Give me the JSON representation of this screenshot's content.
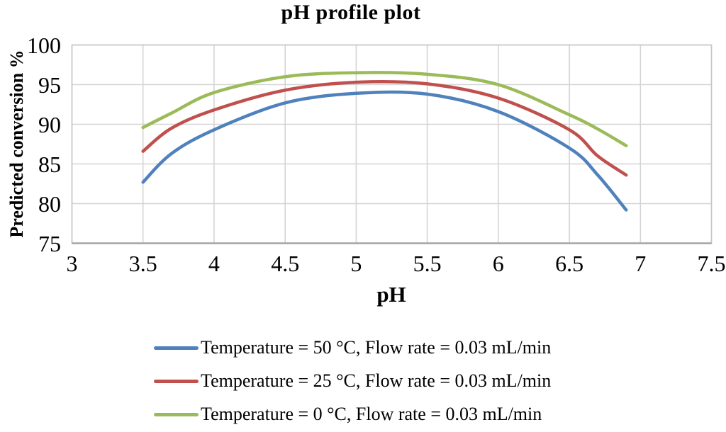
{
  "chart_data": {
    "type": "line",
    "title": "pH profile plot",
    "xlabel": "pH",
    "ylabel": "Predicted conversion %",
    "xlim": [
      3,
      7.5
    ],
    "ylim": [
      75,
      100
    ],
    "x_ticks": [
      3,
      3.5,
      4,
      4.5,
      5,
      5.5,
      6,
      6.5,
      7,
      7.5
    ],
    "y_ticks": [
      75,
      80,
      85,
      90,
      95,
      100
    ],
    "grid": true,
    "legend_position": "bottom",
    "style": {
      "grid_color": "#d4d4d4",
      "plot_border_color": "#c6c6c6",
      "x_axis_color": "#a3a3a3",
      "line_width": 4.5
    },
    "series": [
      {
        "name": "Temperature = 50 °C, Flow rate = 0.03 mL/min",
        "color": "#4F81BD",
        "points": [
          [
            3.5,
            82.7
          ],
          [
            3.7,
            86.3
          ],
          [
            4.0,
            89.3
          ],
          [
            4.5,
            92.7
          ],
          [
            5.0,
            93.9
          ],
          [
            5.5,
            93.8
          ],
          [
            6.0,
            91.6
          ],
          [
            6.5,
            87.0
          ],
          [
            6.7,
            83.6
          ],
          [
            6.9,
            79.2
          ]
        ]
      },
      {
        "name": "Temperature = 25 °C, Flow rate = 0.03 mL/min",
        "color": "#C0504D",
        "points": [
          [
            3.5,
            86.6
          ],
          [
            3.7,
            89.5
          ],
          [
            4.0,
            91.8
          ],
          [
            4.5,
            94.3
          ],
          [
            5.0,
            95.3
          ],
          [
            5.5,
            95.1
          ],
          [
            6.0,
            93.3
          ],
          [
            6.5,
            89.3
          ],
          [
            6.7,
            86.0
          ],
          [
            6.9,
            83.6
          ]
        ]
      },
      {
        "name": "Temperature = 0 °C, Flow rate = 0.03 mL/min",
        "color": "#9BBB59",
        "points": [
          [
            3.5,
            89.6
          ],
          [
            3.7,
            91.4
          ],
          [
            4.0,
            94.0
          ],
          [
            4.5,
            96.0
          ],
          [
            5.0,
            96.5
          ],
          [
            5.5,
            96.3
          ],
          [
            6.0,
            95.0
          ],
          [
            6.5,
            91.2
          ],
          [
            6.7,
            89.4
          ],
          [
            6.9,
            87.3
          ]
        ]
      }
    ]
  }
}
